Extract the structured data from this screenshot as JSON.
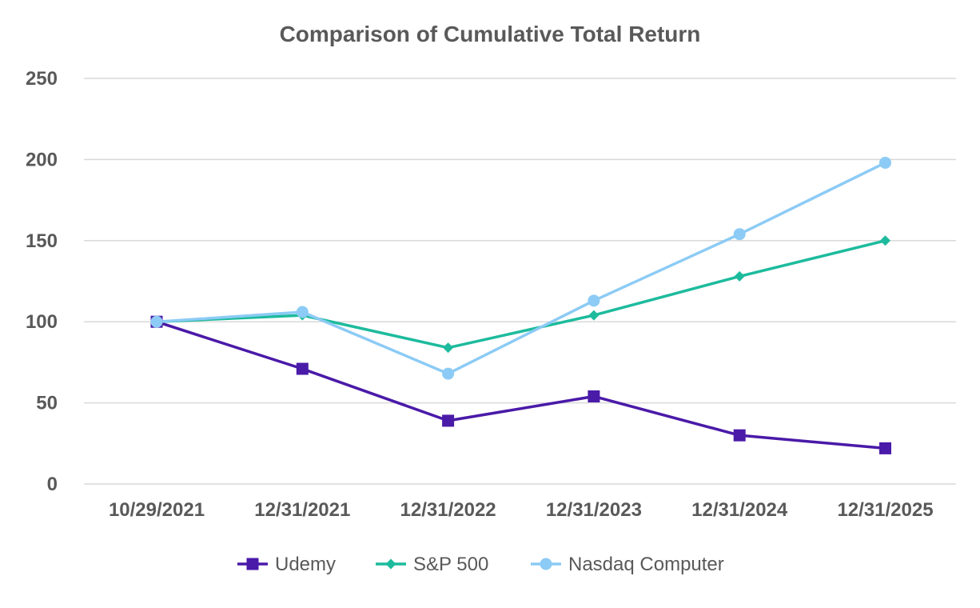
{
  "chart_data": {
    "type": "line",
    "title": "Comparison of Cumulative Total Return",
    "xlabel": "",
    "ylabel": "",
    "categories": [
      "10/29/2021",
      "12/31/2021",
      "12/31/2022",
      "12/31/2023",
      "12/31/2024",
      "12/31/2025"
    ],
    "ylim": [
      0,
      250
    ],
    "yticks": [
      0,
      50,
      100,
      150,
      200,
      250
    ],
    "grid": true,
    "legend_position": "bottom",
    "series": [
      {
        "name": "Udemy",
        "values": [
          100,
          71,
          39,
          54,
          30,
          22
        ],
        "color": "#4a1aa8",
        "marker": "square"
      },
      {
        "name": "S&P 500",
        "values": [
          100,
          104,
          84,
          104,
          128,
          150
        ],
        "color": "#1dbb9d",
        "marker": "diamond"
      },
      {
        "name": "Nasdaq Computer",
        "values": [
          100,
          106,
          68,
          113,
          154,
          198
        ],
        "color": "#8ccbf5",
        "marker": "circle"
      }
    ]
  }
}
